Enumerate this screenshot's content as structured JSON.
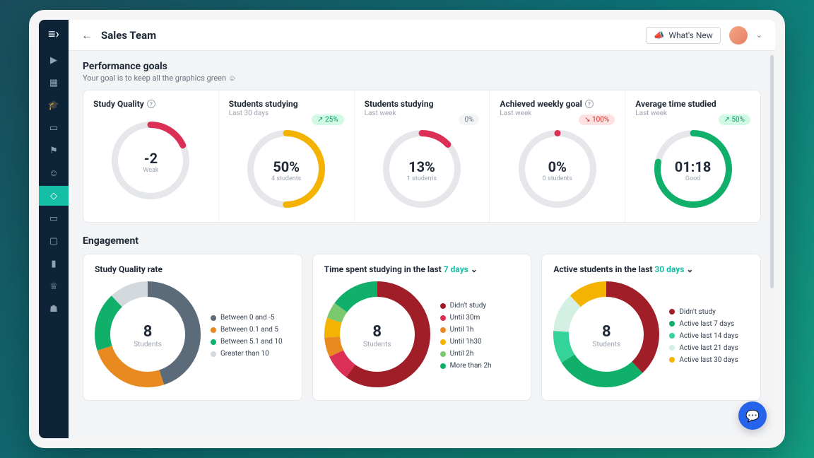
{
  "header": {
    "title": "Sales Team",
    "whats_new": "What's New"
  },
  "performance": {
    "title": "Performance goals",
    "subtitle": "Your goal is to keep all the graphics green ☺"
  },
  "goals": [
    {
      "title": "Study Quality",
      "has_info": true,
      "subtitle": "",
      "value": "-2",
      "label": "Weak",
      "percent": 18,
      "color": "#dc2f55",
      "track": "#e5e7eb",
      "badge": null
    },
    {
      "title": "Students studying",
      "has_info": false,
      "subtitle": "Last 30 days",
      "value": "50%",
      "label": "4 students",
      "percent": 50,
      "color": "#f5b301",
      "track": "#e5e7eb",
      "badge": {
        "text": "25%",
        "type": "green",
        "arrow": "↗"
      }
    },
    {
      "title": "Students studying",
      "has_info": false,
      "subtitle": "Last week",
      "value": "13%",
      "label": "1 students",
      "percent": 13,
      "color": "#dc2f55",
      "track": "#e5e7eb",
      "badge": {
        "text": "0%",
        "type": "grey",
        "arrow": ""
      }
    },
    {
      "title": "Achieved weekly goal",
      "has_info": true,
      "subtitle": "Last week",
      "value": "0%",
      "label": "0 students",
      "percent": 0,
      "color": "#dc2f55",
      "track": "#e5e7eb",
      "badge": {
        "text": "100%",
        "type": "red",
        "arrow": "↘"
      }
    },
    {
      "title": "Average time studied",
      "has_info": false,
      "subtitle": "Last week",
      "value": "01:18",
      "label": "Good",
      "percent": 78,
      "color": "#10b06b",
      "track": "#e5e7eb",
      "badge": {
        "text": "50%",
        "type": "green",
        "arrow": "↗"
      }
    }
  ],
  "engagement": {
    "title": "Engagement",
    "cards": [
      {
        "title_prefix": "Study Quality rate",
        "link_text": "",
        "link_suffix": "",
        "center_value": "8",
        "center_label": "Students",
        "segments": [
          {
            "label": "Between 0 and -5",
            "color": "#5b6b7a",
            "value": 45
          },
          {
            "label": "Between 0.1 and 5",
            "color": "#e88a1f",
            "value": 25
          },
          {
            "label": "Between 5.1 and 10",
            "color": "#10b06b",
            "value": 18
          },
          {
            "label": "Greater than 10",
            "color": "#d4d9dd",
            "value": 12
          }
        ]
      },
      {
        "title_prefix": "Time spent studying in the last ",
        "link_text": "7 days",
        "link_suffix": " ⌄",
        "center_value": "8",
        "center_label": "Students",
        "segments": [
          {
            "label": "Didn't study",
            "color": "#a01e28",
            "value": 60
          },
          {
            "label": "Until 30m",
            "color": "#dc2f55",
            "value": 8
          },
          {
            "label": "Until 1h",
            "color": "#e88a1f",
            "value": 6
          },
          {
            "label": "Until 1h30",
            "color": "#f5b301",
            "value": 6
          },
          {
            "label": "Until 2h",
            "color": "#7bc96f",
            "value": 5
          },
          {
            "label": "More than 2h",
            "color": "#10b06b",
            "value": 15
          }
        ]
      },
      {
        "title_prefix": "Active students in the last ",
        "link_text": "30 days",
        "link_suffix": " ⌄",
        "center_value": "8",
        "center_label": "Students",
        "segments": [
          {
            "label": "Didn't study",
            "color": "#a01e28",
            "value": 38
          },
          {
            "label": "Active last 7 days",
            "color": "#10b06b",
            "value": 28
          },
          {
            "label": "Active last 14 days",
            "color": "#34d399",
            "value": 10
          },
          {
            "label": "Active last 21 days",
            "color": "#d4f0e2",
            "value": 12
          },
          {
            "label": "Active last 30 days",
            "color": "#f5b301",
            "value": 12
          }
        ]
      }
    ]
  },
  "style": {
    "goal_donut_size": 110,
    "goal_donut_thickness": 9,
    "eng_donut_size": 150,
    "eng_donut_thickness": 22
  }
}
